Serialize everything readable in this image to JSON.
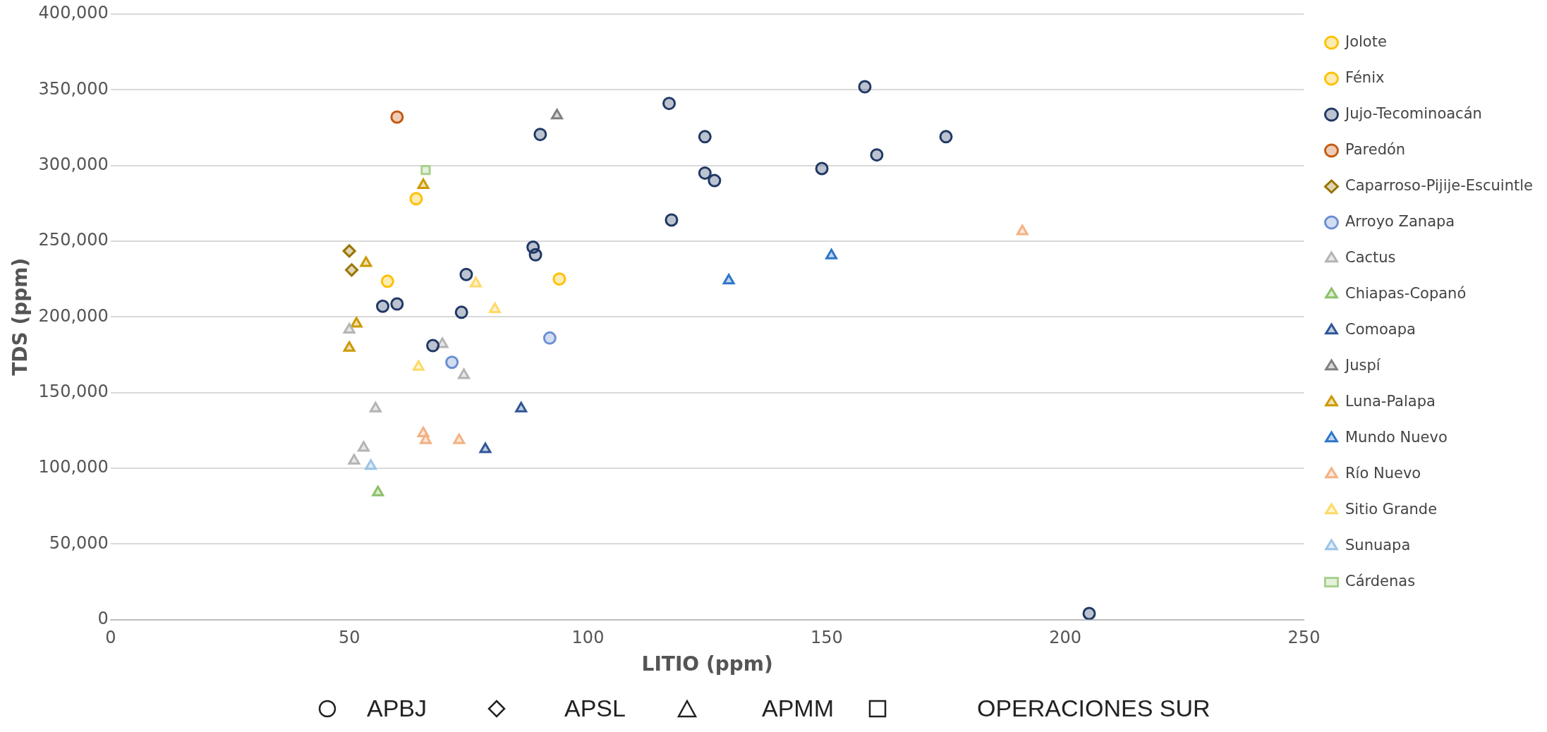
{
  "chart_data": {
    "type": "scatter",
    "xlabel": "LITIO (ppm)",
    "ylabel": "TDS (ppm)",
    "xlim": [
      0,
      250
    ],
    "xticks": [
      0,
      50,
      100,
      150,
      200,
      250
    ],
    "ylim": [
      0,
      400000
    ],
    "yticks": [
      0,
      {
        "value": 50000,
        "label": "50,000"
      },
      {
        "value": 100000,
        "label": "100,000"
      },
      {
        "value": 150000,
        "label": "150,000"
      },
      {
        "value": 200000,
        "label": "200,000"
      },
      {
        "value": 250000,
        "label": "250,000"
      },
      {
        "value": 300000,
        "label": "300,000"
      },
      {
        "value": 350000,
        "label": "350,000"
      },
      {
        "value": 400000,
        "label": "400,000"
      }
    ],
    "grid": "y",
    "legend": "right",
    "annotations": [
      "APBJ",
      "APSL",
      "APMM",
      "OPERACIONES SUR"
    ],
    "series": [
      {
        "name": "Jolote",
        "color": "#ffc000",
        "marker": "circle",
        "x": [
          64,
          58
        ],
        "values": [
          278000,
          223500
        ]
      },
      {
        "name": "Fénix",
        "color": "#ffc000",
        "marker": "circle",
        "x": [
          94
        ],
        "values": [
          225000
        ]
      },
      {
        "name": "Jujo-Tecominoacán",
        "color": "#203864",
        "marker": "circle",
        "x": [
          117,
          158,
          90,
          124.5,
          175,
          160.5,
          149,
          124.5,
          126.5,
          117.5,
          88.5,
          89,
          74.5,
          57,
          60,
          73.5,
          67.5,
          205
        ],
        "values": [
          341000,
          352000,
          320500,
          319000,
          319000,
          307000,
          298000,
          295000,
          290000,
          264000,
          246000,
          241000,
          228000,
          207000,
          208500,
          203000,
          181000,
          4000
        ]
      },
      {
        "name": "Paredón",
        "color": "#c55a11",
        "marker": "circle",
        "x": [
          60
        ],
        "values": [
          332000
        ]
      },
      {
        "name": "Caparroso-Pijije-Escuintle",
        "color": "#997300",
        "marker": "diamond",
        "x": [
          50,
          50.5
        ],
        "values": [
          243500,
          231000
        ]
      },
      {
        "name": "Arroyo Zanapa",
        "color": "#6a8fd4",
        "marker": "circle",
        "x": [
          92,
          71.5
        ],
        "values": [
          186000,
          170000
        ]
      },
      {
        "name": "Cactus",
        "color": "#b4b4b4",
        "marker": "triangle",
        "x": [
          50,
          69.5,
          74,
          55.5,
          53,
          51
        ],
        "values": [
          191500,
          182000,
          161500,
          139500,
          113500,
          105000
        ]
      },
      {
        "name": "Chiapas-Copanó",
        "color": "#8cc068",
        "marker": "triangle",
        "x": [
          56
        ],
        "values": [
          84000
        ]
      },
      {
        "name": "Comoapa",
        "color": "#2f5597",
        "marker": "triangle",
        "x": [
          86,
          78.5
        ],
        "values": [
          139500,
          112500
        ]
      },
      {
        "name": "Juspí",
        "color": "#808080",
        "marker": "triangle",
        "x": [
          93.5
        ],
        "values": [
          333000
        ]
      },
      {
        "name": "Luna-Palapa",
        "color": "#cc9900",
        "marker": "triangle",
        "x": [
          65.5,
          53.5,
          51.5,
          50
        ],
        "values": [
          287000,
          235500,
          195500,
          179500
        ]
      },
      {
        "name": "Mundo Nuevo",
        "color": "#2e75c8",
        "marker": "triangle",
        "x": [
          151,
          129.5
        ],
        "values": [
          240500,
          224000
        ]
      },
      {
        "name": "Río Nuevo",
        "color": "#f4b183",
        "marker": "triangle",
        "x": [
          191,
          65.5,
          66,
          73
        ],
        "values": [
          256500,
          123000,
          118500,
          118500
        ]
      },
      {
        "name": "Sitio Grande",
        "color": "#ffd966",
        "marker": "triangle",
        "x": [
          76.5,
          80.5,
          64.5
        ],
        "values": [
          222000,
          205000,
          167000
        ]
      },
      {
        "name": "Sunuapa",
        "color": "#9dc3e6",
        "marker": "triangle",
        "x": [
          54.5
        ],
        "values": [
          101500
        ]
      },
      {
        "name": "Cárdenas",
        "color": "#a9d18e",
        "marker": "square",
        "x": [
          66
        ],
        "values": [
          297000
        ]
      }
    ]
  }
}
